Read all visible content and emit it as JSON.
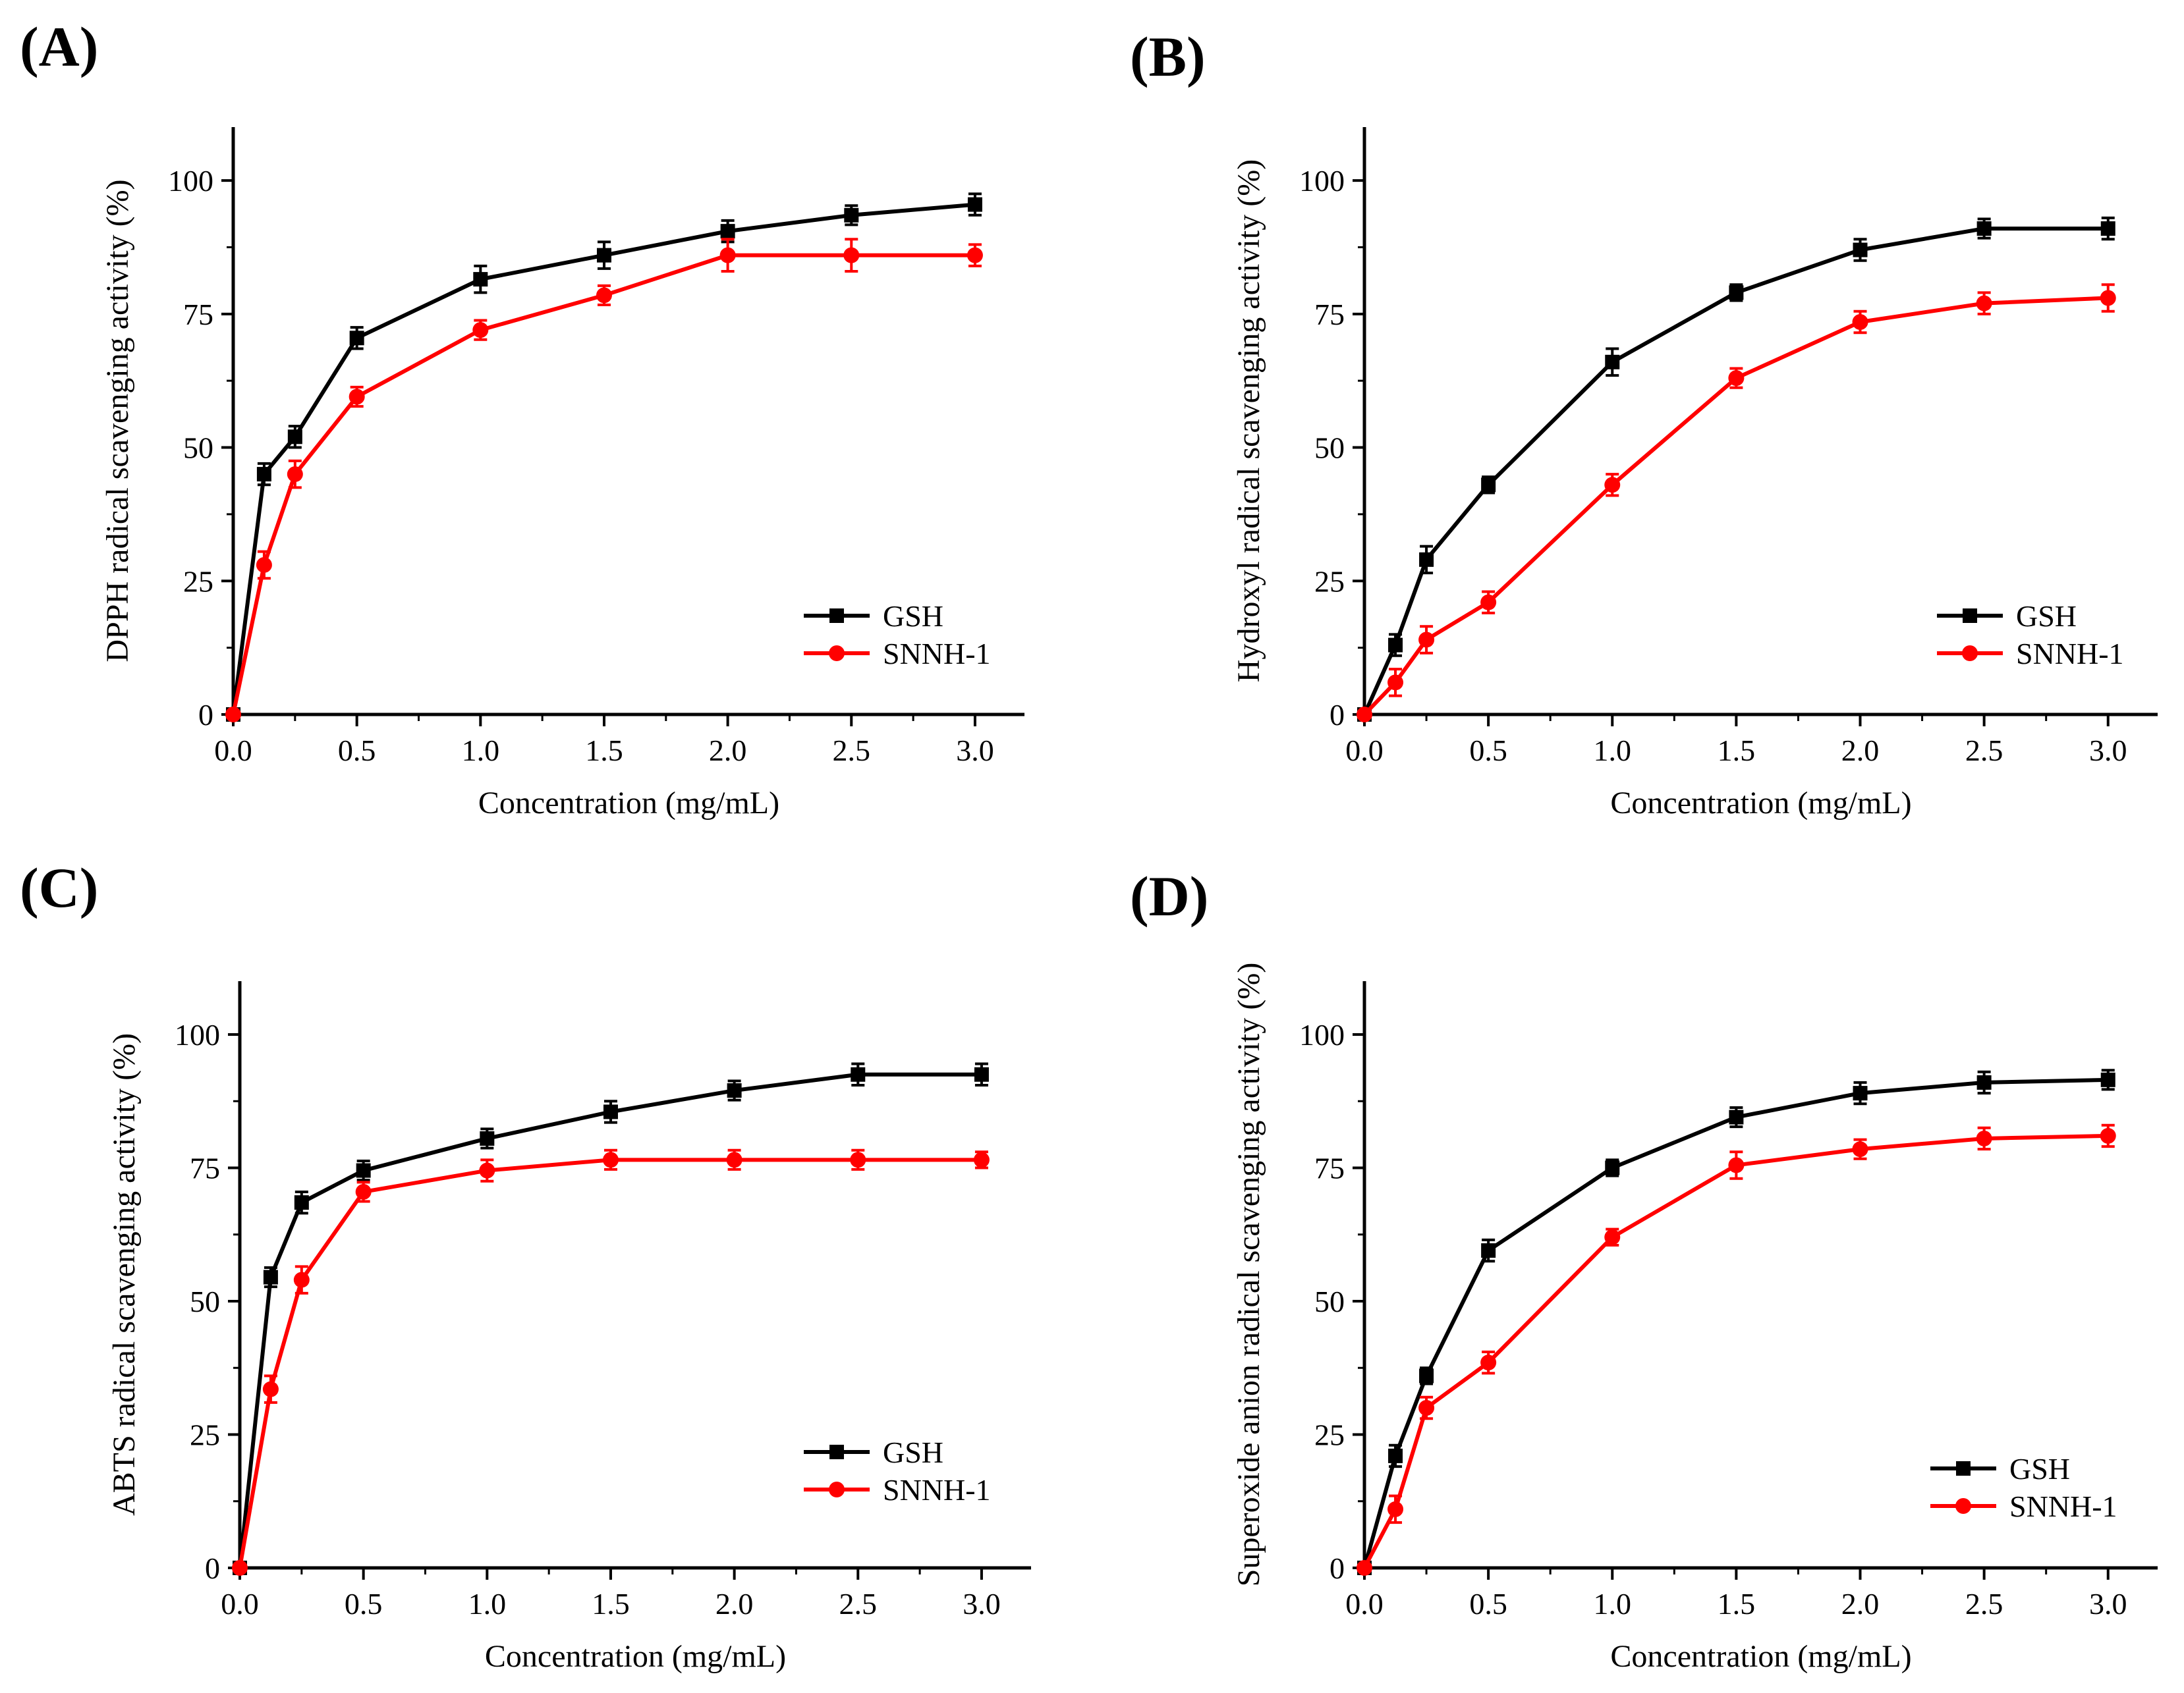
{
  "colors": {
    "GSH": "#000000",
    "SNNH-1": "#ff0000"
  },
  "chart_data": [
    {
      "panel": "(A)",
      "type": "line",
      "xlabel": "Concentration (mg/mL)",
      "ylabel": "DPPH radical scavenging activity (%)",
      "xlim": [
        0,
        3.2
      ],
      "ylim": [
        0,
        110
      ],
      "xticks": [
        "0.0",
        "0.5",
        "1.0",
        "1.5",
        "2.0",
        "2.5",
        "3.0"
      ],
      "yticks": [
        "0",
        "25",
        "50",
        "75",
        "100"
      ],
      "grid": false,
      "legend": "bottom-right",
      "x": [
        0,
        0.125,
        0.25,
        0.5,
        1.0,
        1.5,
        2.0,
        2.5,
        3.0
      ],
      "series": [
        {
          "name": "GSH",
          "marker": "square",
          "values": [
            0,
            45,
            52,
            70.5,
            81.5,
            86,
            90.5,
            93.5,
            95.5
          ],
          "errors": [
            0,
            2,
            2,
            2,
            2.5,
            2.5,
            2,
            1.8,
            2
          ]
        },
        {
          "name": "SNNH-1",
          "marker": "circle",
          "values": [
            0,
            28,
            45,
            59.5,
            72,
            78.5,
            86,
            86,
            86
          ],
          "errors": [
            0,
            2.5,
            2.5,
            1.8,
            1.8,
            1.8,
            3,
            3,
            2
          ]
        }
      ]
    },
    {
      "panel": "(B)",
      "type": "line",
      "xlabel": "Concentration (mg/mL)",
      "ylabel": "Hydroxyl radical scavenging activity (%)",
      "xlim": [
        0,
        3.2
      ],
      "ylim": [
        0,
        110
      ],
      "xticks": [
        "0.0",
        "0.5",
        "1.0",
        "1.5",
        "2.0",
        "2.5",
        "3.0"
      ],
      "yticks": [
        "0",
        "25",
        "50",
        "75",
        "100"
      ],
      "grid": false,
      "legend": "bottom-right",
      "x": [
        0,
        0.125,
        0.25,
        0.5,
        1.0,
        1.5,
        2.0,
        2.5,
        3.0
      ],
      "series": [
        {
          "name": "GSH",
          "marker": "square",
          "values": [
            0,
            13,
            29,
            43,
            66,
            79,
            87,
            91,
            91
          ],
          "errors": [
            0,
            2,
            2.5,
            1.5,
            2.5,
            1.5,
            2,
            1.8,
            2
          ]
        },
        {
          "name": "SNNH-1",
          "marker": "circle",
          "values": [
            0,
            6,
            14,
            21,
            43,
            63,
            73.5,
            77,
            78
          ],
          "errors": [
            0,
            2.5,
            2.5,
            2,
            2,
            1.8,
            2,
            2,
            2.5
          ]
        }
      ]
    },
    {
      "panel": "(C)",
      "type": "line",
      "xlabel": "Concentration (mg/mL)",
      "ylabel": "ABTS radical scavenging activity (%)",
      "xlim": [
        0,
        3.2
      ],
      "ylim": [
        0,
        110
      ],
      "xticks": [
        "0.0",
        "0.5",
        "1.0",
        "1.5",
        "2.0",
        "2.5",
        "3.0"
      ],
      "yticks": [
        "0",
        "25",
        "50",
        "75",
        "100"
      ],
      "grid": false,
      "legend": "bottom-right",
      "x": [
        0,
        0.125,
        0.25,
        0.5,
        1.0,
        1.5,
        2.0,
        2.5,
        3.0
      ],
      "series": [
        {
          "name": "GSH",
          "marker": "square",
          "values": [
            0,
            54.5,
            68.5,
            74.5,
            80.5,
            85.5,
            89.5,
            92.5,
            92.5
          ],
          "errors": [
            0,
            1.8,
            2,
            1.8,
            1.8,
            2,
            1.8,
            2,
            2
          ]
        },
        {
          "name": "SNNH-1",
          "marker": "circle",
          "values": [
            0,
            33.5,
            54,
            70.5,
            74.5,
            76.5,
            76.5,
            76.5,
            76.5
          ],
          "errors": [
            0,
            2.5,
            2.5,
            1.8,
            2,
            1.8,
            1.8,
            1.8,
            1.5
          ]
        }
      ]
    },
    {
      "panel": "(D)",
      "type": "line",
      "xlabel": "Concentration (mg/mL)",
      "ylabel": "Superoxide anion radical scavenging activity (%)",
      "xlim": [
        0,
        3.2
      ],
      "ylim": [
        0,
        110
      ],
      "xticks": [
        "0.0",
        "0.5",
        "1.0",
        "1.5",
        "2.0",
        "2.5",
        "3.0"
      ],
      "yticks": [
        "0",
        "25",
        "50",
        "75",
        "100"
      ],
      "grid": false,
      "legend": "bottom-right",
      "x": [
        0,
        0.125,
        0.25,
        0.5,
        1.0,
        1.5,
        2.0,
        2.5,
        3.0
      ],
      "series": [
        {
          "name": "GSH",
          "marker": "square",
          "values": [
            0,
            21,
            36,
            59.5,
            75,
            84.5,
            89,
            91,
            91.5
          ],
          "errors": [
            0,
            2,
            1.5,
            2,
            1.5,
            1.8,
            2,
            2,
            1.8
          ]
        },
        {
          "name": "SNNH-1",
          "marker": "circle",
          "values": [
            0,
            11,
            30,
            38.5,
            62,
            75.5,
            78.5,
            80.5,
            81
          ],
          "errors": [
            0,
            2.5,
            2,
            2,
            1.5,
            2.5,
            1.8,
            2,
            2
          ]
        }
      ]
    }
  ]
}
